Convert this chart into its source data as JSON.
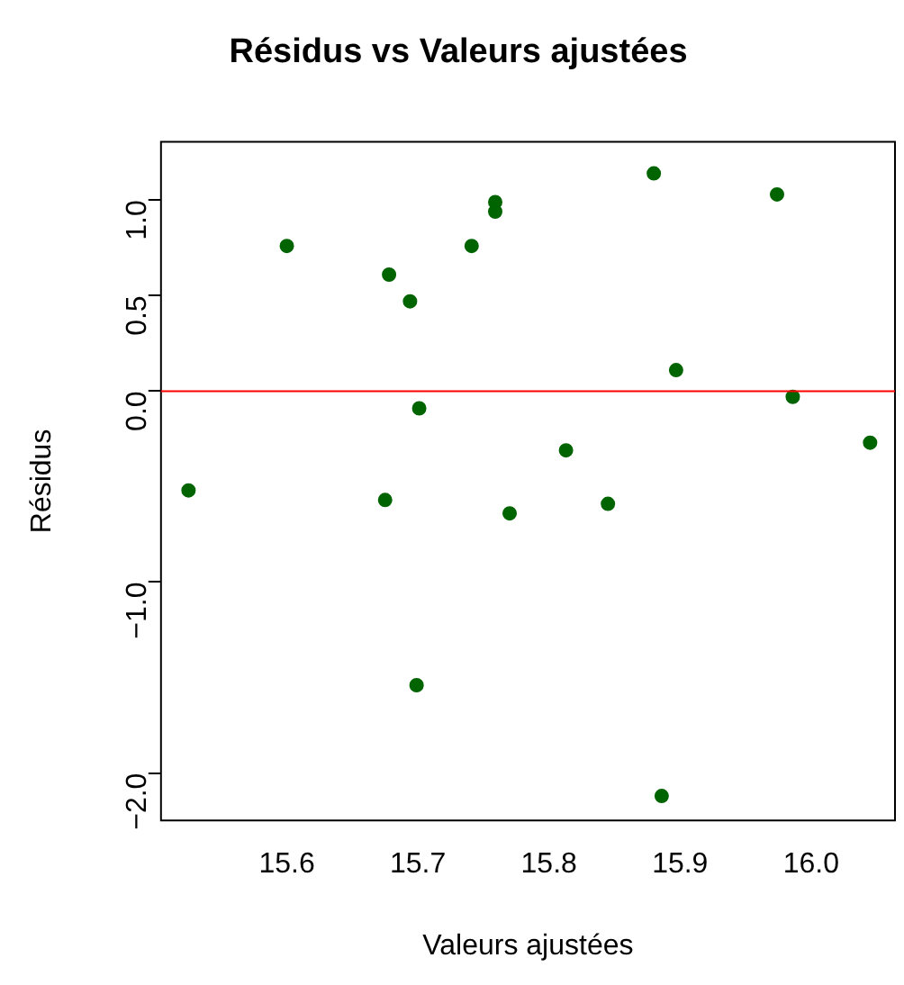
{
  "chart_data": {
    "type": "scatter",
    "title": "Résidus vs Valeurs ajustées",
    "xlabel": "Valeurs ajustées",
    "ylabel": "Résidus",
    "x": [
      15.525,
      15.6,
      15.678,
      15.675,
      15.694,
      15.701,
      15.699,
      15.741,
      15.759,
      15.759,
      15.77,
      15.813,
      15.845,
      15.88,
      15.897,
      15.886,
      15.974,
      15.986,
      16.045
    ],
    "series": [
      {
        "color": "#006400",
        "values": [
          -0.52,
          0.76,
          0.61,
          -0.57,
          0.47,
          -0.09,
          -1.54,
          0.76,
          0.99,
          0.94,
          -0.64,
          -0.31,
          -0.59,
          1.14,
          0.11,
          -2.12,
          1.03,
          -0.03,
          -0.27
        ]
      }
    ],
    "xlim": [
      15.504,
      16.064
    ],
    "ylim": [
      -2.248,
      1.305
    ],
    "xticks": [
      15.6,
      15.7,
      15.8,
      15.9,
      {
        "value": 16,
        "label": "16.0"
      }
    ],
    "yticks": [
      {
        "value": -2,
        "label": "−2.0"
      },
      {
        "value": -1,
        "label": "−1.0"
      },
      {
        "value": 0,
        "label": "0.0"
      },
      {
        "value": 0.5,
        "label": "0.5"
      },
      {
        "value": 1,
        "label": "1.0"
      }
    ],
    "ref_lines": [
      {
        "axis": "y",
        "value": 0,
        "color": "#ff0000"
      }
    ],
    "marker": "circle",
    "grid": false,
    "legend": false
  }
}
